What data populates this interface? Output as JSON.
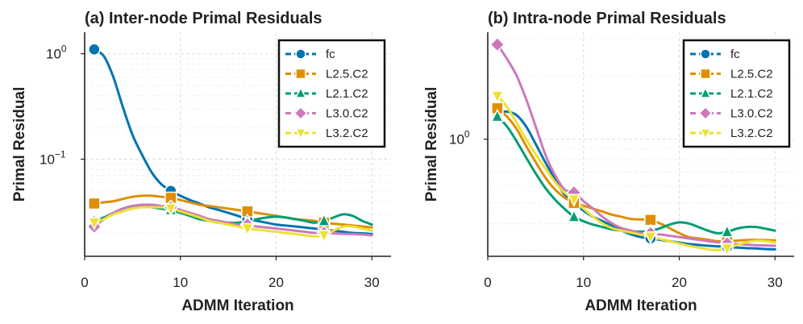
{
  "chart_data": [
    {
      "type": "line",
      "title": "(a) Inter-node Primal Residuals",
      "xlabel": "ADMM Iteration",
      "ylabel": "Primal Residual",
      "yscale": "log",
      "xlim": [
        0,
        32
      ],
      "ylim": [
        0.012,
        1.6
      ],
      "xticks": [
        0,
        10,
        20,
        30
      ],
      "xtick_labels": [
        "0",
        "10",
        "20",
        "30"
      ],
      "yticks": [
        {
          "value": 1.0,
          "base": "10",
          "exp": "0"
        },
        {
          "value": 0.1,
          "base": "10",
          "exp": "−1"
        }
      ],
      "marker_iterations": [
        1,
        9,
        17,
        25
      ],
      "legend": {
        "location": "top-right",
        "entries": [
          "fc",
          "L2.5.C2",
          "L2.1.C2",
          "L3.0.C2",
          "L3.2.C2"
        ]
      },
      "series": [
        {
          "name": "fc",
          "color": "#0173b2",
          "marker": "circle",
          "x": [
            1,
            2,
            3,
            4,
            5,
            6,
            7,
            8,
            9,
            10,
            11,
            12,
            13,
            14,
            15,
            16,
            17,
            18,
            19,
            20,
            21,
            22,
            23,
            24,
            25,
            26,
            27,
            28,
            29,
            30
          ],
          "y": [
            1.1,
            0.95,
            0.6,
            0.31,
            0.17,
            0.11,
            0.075,
            0.058,
            0.05,
            0.045,
            0.041,
            0.038,
            0.035,
            0.033,
            0.031,
            0.029,
            0.027,
            0.026,
            0.025,
            0.024,
            0.0235,
            0.023,
            0.0225,
            0.022,
            0.0215,
            0.021,
            0.0205,
            0.02,
            0.0198,
            0.0195
          ]
        },
        {
          "name": "L2.5.C2",
          "color": "#de8f05",
          "marker": "square",
          "x": [
            1,
            2,
            3,
            4,
            5,
            6,
            7,
            8,
            9,
            10,
            11,
            12,
            13,
            14,
            15,
            16,
            17,
            18,
            19,
            20,
            21,
            22,
            23,
            24,
            25,
            26,
            27,
            28,
            29,
            30
          ],
          "y": [
            0.038,
            0.039,
            0.04,
            0.042,
            0.044,
            0.045,
            0.045,
            0.044,
            0.043,
            0.041,
            0.039,
            0.037,
            0.036,
            0.035,
            0.034,
            0.033,
            0.032,
            0.031,
            0.03,
            0.029,
            0.028,
            0.027,
            0.0265,
            0.026,
            0.025,
            0.0245,
            0.024,
            0.0235,
            0.023,
            0.0225
          ]
        },
        {
          "name": "L2.1.C2",
          "color": "#029e73",
          "marker": "triangle-up",
          "x": [
            1,
            2,
            3,
            4,
            5,
            6,
            7,
            8,
            9,
            10,
            11,
            12,
            13,
            14,
            15,
            16,
            17,
            18,
            19,
            20,
            21,
            22,
            23,
            24,
            25,
            26,
            27,
            28,
            29,
            30
          ],
          "y": [
            0.026,
            0.028,
            0.031,
            0.034,
            0.036,
            0.036,
            0.035,
            0.034,
            0.033,
            0.031,
            0.029,
            0.027,
            0.026,
            0.025,
            0.025,
            0.025,
            0.026,
            0.027,
            0.028,
            0.0285,
            0.028,
            0.027,
            0.026,
            0.025,
            0.026,
            0.028,
            0.03,
            0.029,
            0.026,
            0.024
          ]
        },
        {
          "name": "L3.0.C2",
          "color": "#cc78bc",
          "marker": "diamond",
          "x": [
            1,
            2,
            3,
            4,
            5,
            6,
            7,
            8,
            9,
            10,
            11,
            12,
            13,
            14,
            15,
            16,
            17,
            18,
            19,
            20,
            21,
            22,
            23,
            24,
            25,
            26,
            27,
            28,
            29,
            30
          ],
          "y": [
            0.023,
            0.027,
            0.031,
            0.034,
            0.036,
            0.037,
            0.037,
            0.036,
            0.035,
            0.033,
            0.031,
            0.029,
            0.027,
            0.026,
            0.025,
            0.024,
            0.024,
            0.023,
            0.0225,
            0.022,
            0.0215,
            0.021,
            0.0205,
            0.02,
            0.02,
            0.0198,
            0.0196,
            0.0195,
            0.0193,
            0.019
          ]
        },
        {
          "name": "L3.2.C2",
          "color": "#ece133",
          "marker": "triangle-down",
          "x": [
            1,
            2,
            3,
            4,
            5,
            6,
            7,
            8,
            9,
            10,
            11,
            12,
            13,
            14,
            15,
            16,
            17,
            18,
            19,
            20,
            21,
            22,
            23,
            24,
            25,
            26,
            27,
            28,
            29,
            30
          ],
          "y": [
            0.025,
            0.027,
            0.03,
            0.032,
            0.034,
            0.035,
            0.035,
            0.035,
            0.034,
            0.032,
            0.03,
            0.028,
            0.026,
            0.025,
            0.024,
            0.023,
            0.022,
            0.0215,
            0.021,
            0.0205,
            0.02,
            0.0195,
            0.019,
            0.0185,
            0.019,
            0.021,
            0.023,
            0.023,
            0.022,
            0.021
          ]
        }
      ]
    },
    {
      "type": "line",
      "title": "(b) Intra-node Primal Residuals",
      "xlabel": "ADMM Iteration",
      "ylabel": "Primal Residual",
      "yscale": "log",
      "xlim": [
        0,
        32
      ],
      "ylim": [
        0.28,
        3.2
      ],
      "xticks": [
        0,
        10,
        20,
        30
      ],
      "xtick_labels": [
        "0",
        "10",
        "20",
        "30"
      ],
      "yticks": [
        {
          "value": 1.0,
          "base": "10",
          "exp": "0"
        }
      ],
      "marker_iterations": [
        1,
        9,
        17,
        25
      ],
      "legend": {
        "location": "top-right",
        "entries": [
          "fc",
          "L2.5.C2",
          "L2.1.C2",
          "L3.0.C2",
          "L3.2.C2"
        ]
      },
      "series": [
        {
          "name": "fc",
          "color": "#0173b2",
          "marker": "circle",
          "x": [
            1,
            2,
            3,
            4,
            5,
            6,
            7,
            8,
            9,
            10,
            11,
            12,
            13,
            14,
            15,
            16,
            17,
            18,
            19,
            20,
            21,
            22,
            23,
            24,
            25,
            26,
            27,
            28,
            29,
            30
          ],
          "y": [
            1.35,
            1.35,
            1.3,
            1.15,
            0.95,
            0.78,
            0.65,
            0.55,
            0.5,
            0.46,
            0.43,
            0.41,
            0.39,
            0.37,
            0.355,
            0.345,
            0.34,
            0.335,
            0.33,
            0.325,
            0.32,
            0.317,
            0.314,
            0.312,
            0.31,
            0.308,
            0.306,
            0.305,
            0.303,
            0.302
          ]
        },
        {
          "name": "L2.5.C2",
          "color": "#de8f05",
          "marker": "square",
          "x": [
            1,
            2,
            3,
            4,
            5,
            6,
            7,
            8,
            9,
            10,
            11,
            12,
            13,
            14,
            15,
            16,
            17,
            18,
            19,
            20,
            21,
            22,
            23,
            24,
            25,
            26,
            27,
            28,
            29,
            30
          ],
          "y": [
            1.4,
            1.28,
            1.12,
            0.93,
            0.78,
            0.66,
            0.58,
            0.53,
            0.5,
            0.485,
            0.47,
            0.455,
            0.44,
            0.43,
            0.42,
            0.418,
            0.416,
            0.4,
            0.38,
            0.36,
            0.345,
            0.34,
            0.335,
            0.33,
            0.33,
            0.332,
            0.334,
            0.335,
            0.334,
            0.333
          ]
        },
        {
          "name": "L2.1.C2",
          "color": "#029e73",
          "marker": "triangle-up",
          "x": [
            1,
            2,
            3,
            4,
            5,
            6,
            7,
            8,
            9,
            10,
            11,
            12,
            13,
            14,
            15,
            16,
            17,
            18,
            19,
            20,
            21,
            22,
            23,
            24,
            25,
            26,
            27,
            28,
            29,
            30
          ],
          "y": [
            1.28,
            1.15,
            0.98,
            0.82,
            0.69,
            0.59,
            0.52,
            0.47,
            0.43,
            0.41,
            0.395,
            0.385,
            0.375,
            0.37,
            0.368,
            0.366,
            0.368,
            0.38,
            0.395,
            0.405,
            0.4,
            0.385,
            0.37,
            0.36,
            0.365,
            0.378,
            0.385,
            0.385,
            0.378,
            0.37
          ]
        },
        {
          "name": "L3.0.C2",
          "color": "#cc78bc",
          "marker": "diamond",
          "x": [
            1,
            2,
            3,
            4,
            5,
            6,
            7,
            8,
            9,
            10,
            11,
            12,
            13,
            14,
            15,
            16,
            17,
            18,
            19,
            20,
            21,
            22,
            23,
            24,
            25,
            26,
            27,
            28,
            29,
            30
          ],
          "y": [
            2.8,
            2.4,
            2.0,
            1.55,
            1.15,
            0.85,
            0.68,
            0.58,
            0.56,
            0.51,
            0.47,
            0.43,
            0.4,
            0.38,
            0.37,
            0.36,
            0.36,
            0.355,
            0.35,
            0.345,
            0.34,
            0.335,
            0.33,
            0.326,
            0.322,
            0.32,
            0.318,
            0.316,
            0.315,
            0.314
          ]
        },
        {
          "name": "L3.2.C2",
          "color": "#ece133",
          "marker": "triangle-down",
          "x": [
            1,
            2,
            3,
            4,
            5,
            6,
            7,
            8,
            9,
            10,
            11,
            12,
            13,
            14,
            15,
            16,
            17,
            18,
            19,
            20,
            21,
            22,
            23,
            24,
            25,
            26,
            27,
            28,
            29,
            30
          ],
          "y": [
            1.6,
            1.42,
            1.2,
            1.0,
            0.85,
            0.73,
            0.63,
            0.56,
            0.52,
            0.47,
            0.43,
            0.4,
            0.38,
            0.37,
            0.362,
            0.354,
            0.346,
            0.338,
            0.33,
            0.322,
            0.314,
            0.308,
            0.302,
            0.3,
            0.305,
            0.316,
            0.326,
            0.332,
            0.33,
            0.326
          ]
        }
      ]
    }
  ]
}
